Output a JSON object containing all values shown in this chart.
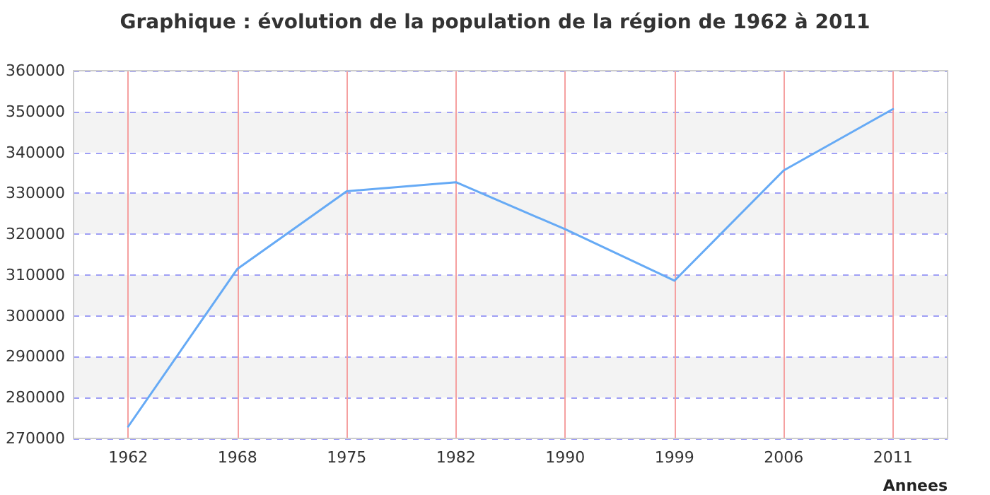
{
  "chart_data": {
    "type": "line",
    "title": "Graphique : évolution de la population de la région de 1962 à 2011",
    "xlabel": "Annees",
    "categories": [
      "1962",
      "1968",
      "1975",
      "1982",
      "1990",
      "1999",
      "2006",
      "2011"
    ],
    "series": [
      {
        "color": "#66aaf5",
        "values": [
          272900,
          311500,
          330500,
          332700,
          321200,
          308600,
          335600,
          350600
        ]
      }
    ],
    "ylim": [
      270000,
      360000
    ],
    "yticks": [
      270000,
      280000,
      290000,
      300000,
      310000,
      320000,
      330000,
      340000,
      350000,
      360000
    ],
    "grid": true,
    "marker": "none",
    "line_style": "solid"
  }
}
